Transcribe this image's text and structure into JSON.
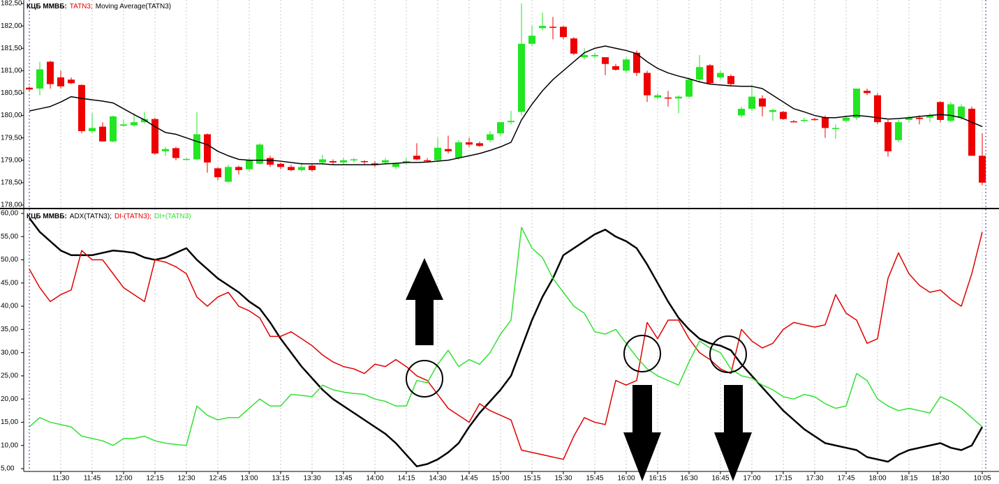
{
  "chart_data": [
    {
      "type": "candlestick",
      "title": "КЦБ ММВБ:",
      "ylim": [
        178,
        182.5
      ],
      "yticks": [
        {
          "value": 178,
          "label": "178,00"
        },
        {
          "value": 178.5,
          "label": "178,50"
        },
        {
          "value": 179,
          "label": "179,00"
        },
        {
          "value": 179.5,
          "label": "179,50"
        },
        {
          "value": 180,
          "label": "180,00"
        },
        {
          "value": 180.5,
          "label": "180,50"
        },
        {
          "value": 181,
          "label": "181,00"
        },
        {
          "value": 181.5,
          "label": "181,50"
        },
        {
          "value": 182,
          "label": "182,00"
        },
        {
          "value": 182.5,
          "label": "182,50"
        }
      ],
      "series": [
        {
          "name": "TATN3;",
          "color": "#e00000",
          "up_color": "#22e622",
          "down_color": "#ee0000",
          "open": [
            180.62,
            180.6,
            181.2,
            180.85,
            180.8,
            180.68,
            179.65,
            179.75,
            179.42,
            179.77,
            179.78,
            179.85,
            179.92,
            179.2,
            179.27,
            179.02,
            179.02,
            179.58,
            178.82,
            178.52,
            178.85,
            178.8,
            178.92,
            179.05,
            178.92,
            178.85,
            178.78,
            178.88,
            178.95,
            178.98,
            178.95,
            179.0,
            178.98,
            178.93,
            178.95,
            178.85,
            178.95,
            179.1,
            179.0,
            179.0,
            179.25,
            179.05,
            179.4,
            179.38,
            179.45,
            179.6,
            179.85,
            180.08,
            181.6,
            181.95,
            181.98,
            181.98,
            181.72,
            181.3,
            181.32,
            181.3,
            181.1,
            181.0,
            181.4,
            180.95,
            180.4,
            180.4,
            180.38,
            180.42,
            180.8,
            181.12,
            180.85,
            180.88,
            180.0,
            180.15,
            180.38,
            180.08,
            180.08,
            179.87,
            179.88,
            179.92,
            179.95,
            179.7,
            179.88,
            179.95,
            180.55,
            180.45,
            179.85,
            179.45,
            179.9,
            179.95,
            179.95,
            180.3,
            179.88,
            179.95,
            180.15,
            179.1
          ],
          "high": [
            180.65,
            181.2,
            181.22,
            181.0,
            180.85,
            180.7,
            180.05,
            179.85,
            180.0,
            179.9,
            180.05,
            180.08,
            179.95,
            179.3,
            179.3,
            179.05,
            180.07,
            179.6,
            178.85,
            178.9,
            178.88,
            179.05,
            179.38,
            179.1,
            178.95,
            178.9,
            178.95,
            178.92,
            179.12,
            179.02,
            179.05,
            179.05,
            179.0,
            178.98,
            179.05,
            178.95,
            179.05,
            179.38,
            179.05,
            179.5,
            179.55,
            179.45,
            179.5,
            179.42,
            179.65,
            179.85,
            180.1,
            182.5,
            182.0,
            182.3,
            182.2,
            182.0,
            181.75,
            181.5,
            181.4,
            181.3,
            181.15,
            181.3,
            181.45,
            181.0,
            180.5,
            180.55,
            180.45,
            180.85,
            181.35,
            181.15,
            181.0,
            180.92,
            180.2,
            180.68,
            180.45,
            180.15,
            180.1,
            179.9,
            179.95,
            179.95,
            180.0,
            179.8,
            180.0,
            180.6,
            180.6,
            180.5,
            179.9,
            179.9,
            180.0,
            180.0,
            180.05,
            180.32,
            180.3,
            180.25,
            180.2,
            179.6
          ],
          "low": [
            180.55,
            180.45,
            180.6,
            180.6,
            180.7,
            179.6,
            179.6,
            179.42,
            179.4,
            179.75,
            179.75,
            179.82,
            179.12,
            179.1,
            179.0,
            179.0,
            179.0,
            178.72,
            178.55,
            178.5,
            178.68,
            178.75,
            178.9,
            178.85,
            178.8,
            178.75,
            178.75,
            178.75,
            178.9,
            178.9,
            178.9,
            178.95,
            178.9,
            178.85,
            178.9,
            178.8,
            178.9,
            179.0,
            178.95,
            178.95,
            179.15,
            179.0,
            179.3,
            179.3,
            179.4,
            179.55,
            179.8,
            180.0,
            181.55,
            181.9,
            181.7,
            181.7,
            181.35,
            181.25,
            181.28,
            180.9,
            181.0,
            180.95,
            180.88,
            180.3,
            180.35,
            180.2,
            180.05,
            180.4,
            180.75,
            180.7,
            180.8,
            180.65,
            179.95,
            180.1,
            179.98,
            179.88,
            179.9,
            179.85,
            179.85,
            179.88,
            179.5,
            179.48,
            179.85,
            179.9,
            180.45,
            179.8,
            179.08,
            179.4,
            179.85,
            179.8,
            179.85,
            179.85,
            179.85,
            179.9,
            179.1,
            178.45
          ],
          "close": [
            180.58,
            181.03,
            180.7,
            180.65,
            180.72,
            179.65,
            179.72,
            179.42,
            179.98,
            179.8,
            179.85,
            179.92,
            179.15,
            179.25,
            179.05,
            179.03,
            179.58,
            178.95,
            178.62,
            178.85,
            178.78,
            179.0,
            179.35,
            178.9,
            178.85,
            178.78,
            178.85,
            178.78,
            179.02,
            178.95,
            179.0,
            179.02,
            178.96,
            178.9,
            179.0,
            178.92,
            178.98,
            179.02,
            178.98,
            179.28,
            179.2,
            179.4,
            179.35,
            179.32,
            179.58,
            179.85,
            179.88,
            181.6,
            181.78,
            182.0,
            181.96,
            181.75,
            181.38,
            181.35,
            181.35,
            181.15,
            181.02,
            181.25,
            180.95,
            180.45,
            180.45,
            180.38,
            180.42,
            180.8,
            181.08,
            180.72,
            180.95,
            180.7,
            180.15,
            180.42,
            180.2,
            180.12,
            179.92,
            179.86,
            179.9,
            179.9,
            179.72,
            179.72,
            179.95,
            180.6,
            180.5,
            179.85,
            179.2,
            179.85,
            179.95,
            179.92,
            180.0,
            179.9,
            180.25,
            180.2,
            179.1,
            178.5
          ]
        },
        {
          "name": "Moving Average(TATN3)",
          "color": "#000000",
          "values": [
            180.1,
            180.15,
            180.2,
            180.3,
            180.42,
            180.38,
            180.35,
            180.32,
            180.28,
            180.15,
            180.02,
            179.9,
            179.75,
            179.62,
            179.58,
            179.5,
            179.42,
            179.35,
            179.2,
            179.1,
            179.02,
            179.0,
            179.0,
            179.0,
            178.98,
            178.95,
            178.92,
            178.92,
            178.92,
            178.9,
            178.9,
            178.9,
            178.9,
            178.9,
            178.92,
            178.93,
            178.95,
            178.95,
            178.96,
            178.98,
            179.0,
            179.05,
            179.1,
            179.15,
            179.22,
            179.3,
            179.4,
            179.9,
            180.25,
            180.55,
            180.8,
            181.0,
            181.2,
            181.4,
            181.5,
            181.55,
            181.5,
            181.45,
            181.38,
            181.2,
            181.05,
            180.95,
            180.88,
            180.82,
            180.75,
            180.7,
            180.68,
            180.66,
            180.65,
            180.65,
            180.6,
            180.45,
            180.3,
            180.15,
            180.08,
            180.0,
            179.95,
            179.95,
            179.98,
            180.0,
            179.98,
            179.95,
            179.92,
            179.93,
            179.95,
            179.98,
            180.0,
            180.02,
            180.0,
            179.95,
            179.85,
            179.75
          ]
        }
      ]
    },
    {
      "type": "line",
      "title": "КЦБ ММВБ:",
      "ylim": [
        5,
        60
      ],
      "yticks": [
        {
          "value": 5,
          "label": "5,00"
        },
        {
          "value": 10,
          "label": "10,00"
        },
        {
          "value": 15,
          "label": "15,00"
        },
        {
          "value": 20,
          "label": "20,00"
        },
        {
          "value": 25,
          "label": "25,00"
        },
        {
          "value": 30,
          "label": "30,00"
        },
        {
          "value": 35,
          "label": "35,00"
        },
        {
          "value": 40,
          "label": "40,00"
        },
        {
          "value": 45,
          "label": "45,00"
        },
        {
          "value": 50,
          "label": "50,00"
        },
        {
          "value": 55,
          "label": "55,00"
        },
        {
          "value": 60,
          "label": "60,00"
        }
      ],
      "categories": [
        null,
        null,
        null,
        "11:30",
        null,
        null,
        "11:45",
        null,
        null,
        "12:00",
        null,
        null,
        "12:15",
        null,
        null,
        "12:30",
        null,
        null,
        "12:45",
        null,
        null,
        "13:00",
        null,
        null,
        "13:15",
        null,
        null,
        "13:30",
        null,
        null,
        "13:45",
        null,
        null,
        "14:00",
        null,
        null,
        "14:15",
        null,
        null,
        "14:30",
        null,
        null,
        "14:45",
        null,
        null,
        "15:00",
        null,
        null,
        "15:15",
        null,
        null,
        "15:30",
        null,
        null,
        "15:45",
        null,
        null,
        "16:00",
        null,
        null,
        "16:15",
        null,
        null,
        "16:30",
        null,
        null,
        "16:45",
        null,
        null,
        "17:00",
        null,
        null,
        "17:15",
        null,
        null,
        "17:30",
        null,
        null,
        "17:45",
        null,
        null,
        "18:00",
        null,
        null,
        "18:15",
        null,
        null,
        "18:30",
        null,
        null,
        null,
        "10:05"
      ],
      "series": [
        {
          "name": "ADX(TATN3);",
          "color": "#000000",
          "width": 2.5,
          "values": [
            59,
            56,
            54,
            52,
            51,
            51,
            51,
            51.5,
            52,
            51.8,
            51.5,
            50.5,
            50,
            50.5,
            51.5,
            52.5,
            50,
            48,
            46,
            44.5,
            43,
            41,
            39.5,
            36.5,
            33,
            30,
            27,
            24.5,
            22,
            20,
            18.5,
            17,
            15.5,
            14,
            12.5,
            10.5,
            8,
            5.5,
            6,
            7,
            8.5,
            10.5,
            14,
            17,
            19.5,
            22,
            25,
            31,
            37,
            42,
            46,
            51,
            52.5,
            54,
            55.5,
            56.5,
            55,
            54,
            52.5,
            49,
            45,
            41,
            37.5,
            35,
            33,
            32,
            31.5,
            30.5,
            27.5,
            25,
            22.5,
            20,
            17.5,
            15.5,
            13.5,
            12,
            10.5,
            10,
            9.5,
            9,
            7.5,
            7,
            6.5,
            8,
            9,
            9.5,
            10,
            10.5,
            9.5,
            9,
            10,
            14
          ]
        },
        {
          "name": "DI-(TATN3);",
          "color": "#e00000",
          "width": 1.5,
          "values": [
            48,
            44,
            41,
            42.5,
            43.5,
            52,
            50,
            50,
            47,
            44,
            42.5,
            41,
            50,
            49.5,
            48.5,
            47,
            42,
            40,
            42,
            43,
            40,
            39,
            37.5,
            33.5,
            33.5,
            34.5,
            33,
            31.5,
            29.5,
            28,
            27,
            26.5,
            25.5,
            27.5,
            27,
            28.5,
            27,
            25,
            24,
            21,
            18,
            16.5,
            15,
            19,
            17.5,
            16.5,
            15.5,
            9,
            8.5,
            8,
            7.5,
            7,
            12,
            16,
            15,
            14.5,
            24,
            23,
            24,
            36.5,
            33,
            37,
            37,
            33,
            30,
            28.5,
            26.5,
            25.5,
            35,
            32.5,
            31,
            32,
            35,
            36.5,
            36,
            35.5,
            36,
            42.5,
            38.5,
            37,
            32,
            33,
            46,
            51.5,
            47,
            44.5,
            43,
            43.5,
            41.5,
            40,
            47,
            56
          ]
        },
        {
          "name": "DI+(TATN3)",
          "color": "#33e033",
          "width": 1.5,
          "values": [
            14,
            16,
            15,
            14.5,
            14,
            12,
            11.5,
            11,
            10,
            11.5,
            11.5,
            12,
            11,
            10.5,
            10.2,
            10,
            18.5,
            16.5,
            15.5,
            16,
            16,
            18,
            20,
            18.5,
            18.5,
            21,
            20.8,
            20.5,
            23,
            22,
            21.5,
            21.2,
            21,
            20,
            19.5,
            18.5,
            18.5,
            24,
            23.5,
            27.5,
            30.5,
            27,
            28.5,
            27.5,
            30,
            34,
            37,
            57,
            52.5,
            50.5,
            46,
            43,
            40,
            38.5,
            34.5,
            34,
            35,
            32,
            29,
            26.5,
            25,
            24,
            23,
            28,
            32.5,
            31,
            30,
            26.5,
            25,
            24.5,
            23,
            22,
            20.5,
            20,
            21,
            20.5,
            19,
            18,
            18.5,
            25.5,
            24,
            20,
            18.5,
            17.5,
            18,
            17.5,
            17,
            20.5,
            19.5,
            18,
            16,
            14
          ]
        }
      ]
    }
  ]
}
